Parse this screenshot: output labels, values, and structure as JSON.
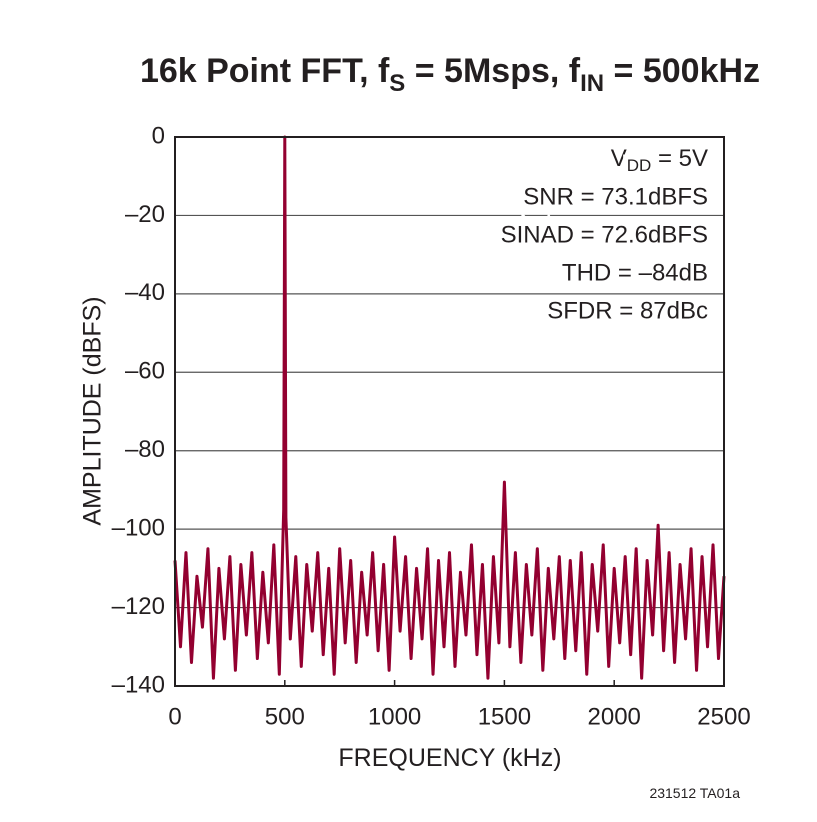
{
  "chart_data": {
    "type": "line",
    "title": [
      "16k Point FFT, f",
      "S",
      " = 5Msps, f",
      "IN",
      " = 500kHz"
    ],
    "xlabel": "FREQUENCY (kHz)",
    "ylabel": "AMPLITUDE (dBFS)",
    "annotations": [
      [
        "V",
        "DD",
        " = 5V"
      ],
      "SNR = 73.1dBFS",
      "SINAD = 72.6dBFS",
      "THD = –84dB",
      "SFDR = 87dBc"
    ],
    "footnote": "231512 TA01a",
    "xlim": [
      0,
      2500
    ],
    "xticks": [
      0,
      500,
      1000,
      1500,
      2000,
      2500
    ],
    "ylim": [
      -140,
      0
    ],
    "yticks": [
      0,
      {
        "value": -20,
        "label": "–20"
      },
      {
        "value": -40,
        "label": "–40"
      },
      {
        "value": -60,
        "label": "–60"
      },
      {
        "value": -80,
        "label": "–80"
      },
      {
        "value": -100,
        "label": "–100"
      },
      {
        "value": -120,
        "label": "–120"
      },
      {
        "value": -140,
        "label": "–140"
      }
    ],
    "grid": true,
    "series": [
      {
        "color": "#930030",
        "x": [
          0,
          25,
          50,
          75,
          100,
          125,
          150,
          175,
          200,
          225,
          250,
          275,
          300,
          325,
          350,
          375,
          400,
          425,
          450,
          475,
          495,
          500,
          505,
          525,
          550,
          575,
          600,
          625,
          650,
          675,
          700,
          725,
          750,
          775,
          800,
          825,
          850,
          875,
          900,
          925,
          950,
          975,
          1000,
          1025,
          1050,
          1075,
          1100,
          1125,
          1150,
          1175,
          1200,
          1225,
          1250,
          1275,
          1300,
          1325,
          1350,
          1375,
          1400,
          1425,
          1450,
          1475,
          1500,
          1525,
          1550,
          1575,
          1600,
          1625,
          1650,
          1675,
          1700,
          1725,
          1750,
          1775,
          1800,
          1825,
          1850,
          1875,
          1900,
          1925,
          1950,
          1975,
          2000,
          2025,
          2050,
          2075,
          2100,
          2125,
          2150,
          2175,
          2200,
          2225,
          2250,
          2275,
          2300,
          2325,
          2350,
          2375,
          2400,
          2425,
          2450,
          2475,
          2500
        ],
        "values": [
          -108,
          -130,
          -106,
          -134,
          -112,
          -125,
          -105,
          -138,
          -110,
          -128,
          -107,
          -136,
          -109,
          -127,
          -106,
          -133,
          -111,
          -129,
          -104,
          -137,
          -95,
          0,
          -97,
          -128,
          -107,
          -135,
          -109,
          -126,
          -106,
          -132,
          -110,
          -137,
          -105,
          -129,
          -108,
          -134,
          -111,
          -127,
          -106,
          -131,
          -109,
          -136,
          -102,
          -126,
          -107,
          -133,
          -110,
          -128,
          -105,
          -137,
          -108,
          -130,
          -106,
          -135,
          -111,
          -127,
          -104,
          -132,
          -109,
          -138,
          -107,
          -129,
          -88,
          -130,
          -106,
          -134,
          -109,
          -127,
          -105,
          -136,
          -110,
          -128,
          -107,
          -133,
          -108,
          -131,
          -106,
          -137,
          -109,
          -126,
          -104,
          -135,
          -110,
          -129,
          -107,
          -132,
          -105,
          -138,
          -108,
          -127,
          -99,
          -131,
          -106,
          -134,
          -109,
          -128,
          -105,
          -136,
          -107,
          -130,
          -104,
          -133,
          -112
        ]
      }
    ]
  }
}
